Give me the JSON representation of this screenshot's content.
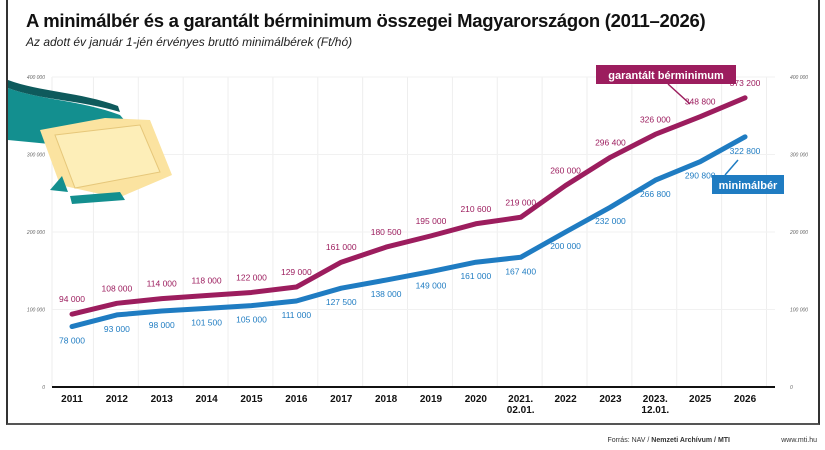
{
  "header": {
    "title": "A minimálbér és a garantált bérminimum összegei Magyarországon (2011–2026)",
    "subtitle": "Az adott év január 1-jén érvényes bruttó minimálbérek (Ft/hó)"
  },
  "footer": {
    "source_prefix": "Forrás: NAV / ",
    "source_bold": "Nemzeti Archívum / MTI",
    "website": "www.mti.hu"
  },
  "chart_data": {
    "type": "line",
    "title": "A minimálbér és a garantált bérminimum összegei Magyarországon (2011–2026)",
    "subtitle": "Az adott év január 1-jén érvényes bruttó minimálbérek (Ft/hó)",
    "categories": [
      "2011",
      "2012",
      "2013",
      "2014",
      "2015",
      "2016",
      "2017",
      "2018",
      "2019",
      "2020",
      "2021.\n02.01.",
      "2022",
      "2023",
      "2023.\n12.01.",
      "2025",
      "2026"
    ],
    "ylim": [
      0,
      400000
    ],
    "yticks": [
      0,
      100000,
      200000,
      300000,
      400000
    ],
    "ytick_labels": [
      "0",
      "100 000",
      "200 000",
      "300 000",
      "400 000"
    ],
    "grid": true,
    "series": [
      {
        "name": "garantált bérminimum",
        "color": "#9c1d5e",
        "values": [
          94000,
          108000,
          114000,
          118000,
          122000,
          129000,
          161000,
          180500,
          195000,
          210600,
          219000,
          260000,
          296400,
          326000,
          348800,
          373200
        ],
        "labels": [
          "94 000",
          "108 000",
          "114 000",
          "118 000",
          "122 000",
          "129 000",
          "161 000",
          "180 500",
          "195 000",
          "210 600",
          "219 000",
          "260 000",
          "296 400",
          "326 000",
          "348 800",
          "373 200"
        ]
      },
      {
        "name": "minimálbér",
        "color": "#1f7cc2",
        "values": [
          78000,
          93000,
          98000,
          101500,
          105000,
          111000,
          127500,
          138000,
          149000,
          161000,
          167400,
          200000,
          232000,
          266800,
          290800,
          322800
        ],
        "labels": [
          "78 000",
          "93 000",
          "98 000",
          "101 500",
          "105 000",
          "111 000",
          "127 500",
          "138 000",
          "149 000",
          "161 000",
          "167 400",
          "200 000",
          "232 000",
          "266 800",
          "290 800",
          "322 800"
        ]
      }
    ]
  }
}
